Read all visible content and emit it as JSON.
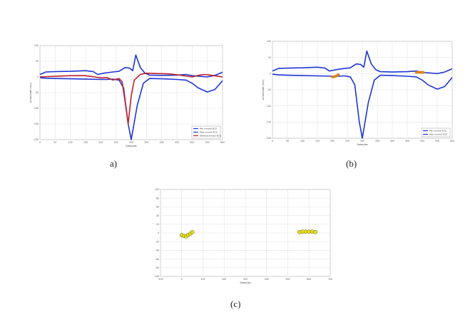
{
  "chart_data": [
    {
      "panel": "a",
      "caption": "a)",
      "type": "line",
      "xlabel": "Samples",
      "ylabel": "Amplitude (mV)",
      "xlim": [
        0,
        600
      ],
      "ylim": [
        -200,
        100
      ],
      "x_ticks": [
        "0",
        "50",
        "100",
        "150",
        "200",
        "250",
        "300",
        "350",
        "400",
        "450",
        "500",
        "550",
        "600"
      ],
      "y_ticks": [
        "100",
        "50",
        "0",
        "-50",
        "-100",
        "-150",
        "-200"
      ],
      "grid": true,
      "legend_position": "bottom-right",
      "series": [
        {
          "name": "Min normal ECG",
          "color": "#1f35d6",
          "x": [
            0,
            20,
            50,
            100,
            150,
            200,
            220,
            240,
            260,
            275,
            290,
            300,
            320,
            340,
            360,
            400,
            450,
            480,
            500,
            520,
            550,
            575,
            600
          ],
          "y": [
            -2,
            -4,
            -5,
            -6,
            -7,
            -8,
            -8,
            -7,
            -10,
            -35,
            -150,
            -200,
            -90,
            -20,
            -5,
            -6,
            -8,
            -10,
            -20,
            -35,
            -48,
            -40,
            -12
          ]
        },
        {
          "name": "Max normal ECG",
          "color": "#1f35d6",
          "x": [
            0,
            10,
            20,
            50,
            100,
            150,
            175,
            190,
            210,
            240,
            260,
            280,
            295,
            305,
            315,
            330,
            345,
            360,
            400,
            450,
            480,
            500,
            550,
            575,
            600
          ],
          "y": [
            8,
            12,
            16,
            17,
            18,
            20,
            17,
            8,
            12,
            16,
            18,
            30,
            28,
            20,
            70,
            30,
            12,
            6,
            5,
            6,
            8,
            4,
            0,
            5,
            15
          ]
        },
        {
          "name": "Atherosclerosis ECG",
          "color": "#c0202a",
          "x": [
            0,
            50,
            100,
            150,
            180,
            200,
            220,
            240,
            260,
            270,
            280,
            290,
            300,
            310,
            330,
            350,
            380,
            420,
            460,
            500,
            520,
            540,
            560,
            580,
            600
          ],
          "y": [
            0,
            2,
            4,
            4,
            0,
            -3,
            -2,
            -10,
            -5,
            -15,
            -80,
            -150,
            -60,
            -10,
            8,
            12,
            11,
            10,
            6,
            0,
            5,
            8,
            6,
            3,
            0
          ]
        }
      ]
    },
    {
      "panel": "b",
      "caption": "(b)",
      "type": "line",
      "xlabel": "Samples",
      "ylabel": "Amplitude (mV)",
      "xlim": [
        0,
        600
      ],
      "ylim": [
        -200,
        100
      ],
      "x_ticks": [
        "0",
        "50",
        "100",
        "150",
        "200",
        "250",
        "300",
        "350",
        "400",
        "450",
        "500",
        "550",
        "600"
      ],
      "y_ticks": [
        "100",
        "50",
        "0",
        "-50",
        "-100",
        "-150",
        "-200"
      ],
      "grid": true,
      "legend_position": "bottom-right",
      "series": [
        {
          "name": "Min normal ECG",
          "color": "#1f35d6",
          "x": [
            0,
            20,
            50,
            100,
            150,
            200,
            220,
            240,
            260,
            275,
            290,
            300,
            320,
            340,
            360,
            400,
            450,
            480,
            500,
            520,
            550,
            575,
            600
          ],
          "y": [
            -2,
            -4,
            -5,
            -6,
            -7,
            -8,
            -8,
            -7,
            -10,
            -35,
            -150,
            -200,
            -90,
            -20,
            -5,
            -6,
            -8,
            -10,
            -20,
            -35,
            -48,
            -40,
            -12
          ]
        },
        {
          "name": "Max normal ECG",
          "color": "#1f35d6",
          "x": [
            0,
            10,
            20,
            50,
            100,
            150,
            175,
            190,
            210,
            240,
            260,
            280,
            295,
            305,
            315,
            330,
            345,
            360,
            400,
            450,
            480,
            500,
            550,
            575,
            600
          ],
          "y": [
            8,
            12,
            16,
            17,
            18,
            20,
            17,
            8,
            12,
            16,
            18,
            30,
            28,
            20,
            70,
            30,
            12,
            6,
            5,
            6,
            8,
            4,
            0,
            5,
            15
          ]
        }
      ],
      "markers": {
        "color": "#e08a1c",
        "x": [
          200,
          204,
          208,
          212,
          216,
          220,
          480,
          484,
          488,
          492,
          496,
          500,
          504
        ],
        "y": [
          -10,
          -10,
          -9,
          -8,
          -6,
          -3,
          4,
          4,
          4,
          4,
          4,
          4,
          4
        ]
      }
    },
    {
      "panel": "c",
      "caption": "(c)",
      "type": "scatter",
      "xlabel": "Samples",
      "ylabel": "Amplitude (mV)",
      "xlim": [
        -100,
        700
      ],
      "ylim": [
        -100,
        100
      ],
      "x_ticks": [
        "-100",
        "0",
        "100",
        "200",
        "300",
        "400",
        "500",
        "600",
        "700"
      ],
      "y_ticks": [
        "100",
        "80",
        "60",
        "40",
        "20",
        "0",
        "-20",
        "-40",
        "-60",
        "-80",
        "-100"
      ],
      "grid": true,
      "marker_color": "#e8e01a",
      "x": [
        0,
        10,
        20,
        30,
        40,
        50,
        555,
        570,
        585,
        600,
        615,
        630
      ],
      "y": [
        -5,
        -7,
        -8,
        -5,
        -2,
        2,
        2,
        3,
        3,
        3,
        3,
        2
      ]
    }
  ]
}
